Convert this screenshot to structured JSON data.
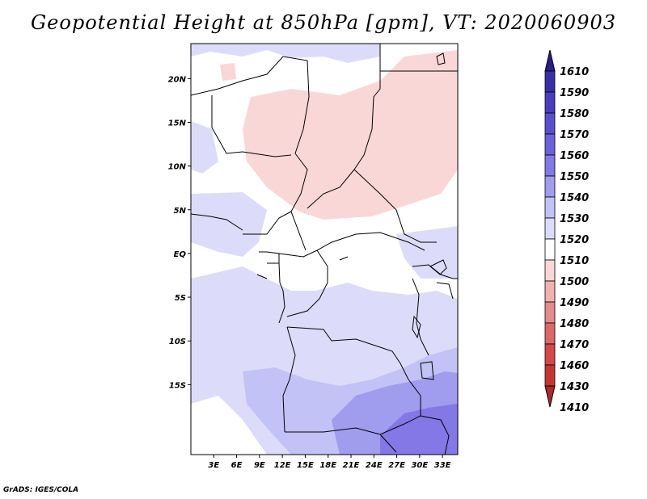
{
  "title": "Geopotential Height at 850hPa [gpm], VT: 2020060903",
  "footer": "GrADS: IGES/COLA",
  "map": {
    "variable": "Geopotential Height",
    "level": "850hPa",
    "units": "gpm",
    "valid_time": "2020060903",
    "lon_range": [
      0,
      35
    ],
    "lat_range": [
      -23,
      24
    ],
    "x_ticks": [
      "3E",
      "6E",
      "9E",
      "12E",
      "15E",
      "18E",
      "21E",
      "24E",
      "27E",
      "30E",
      "33E"
    ],
    "x_tick_values": [
      3,
      6,
      9,
      12,
      15,
      18,
      21,
      24,
      27,
      30,
      33
    ],
    "y_ticks": [
      "20N",
      "15N",
      "10N",
      "5N",
      "EQ",
      "5S",
      "10S",
      "15S"
    ],
    "y_tick_values": [
      20,
      15,
      10,
      5,
      0,
      -5,
      -10,
      -15
    ]
  },
  "colorbar": {
    "labels": [
      "1610",
      "1590",
      "1580",
      "1570",
      "1560",
      "1550",
      "1540",
      "1530",
      "1520",
      "1510",
      "1500",
      "1490",
      "1480",
      "1470",
      "1460",
      "1430",
      "1410"
    ],
    "colors": [
      "#2a1e8c",
      "#3a2ea8",
      "#4a3cc0",
      "#5a4ed0",
      "#6a62dc",
      "#8478e6",
      "#a09cee",
      "#c2c2f6",
      "#dcdcfa",
      "#ffffff",
      "#fad7d7",
      "#f2b0b0",
      "#e68a8a",
      "#dc6868",
      "#d44848",
      "#c83434",
      "#b02828"
    ]
  }
}
